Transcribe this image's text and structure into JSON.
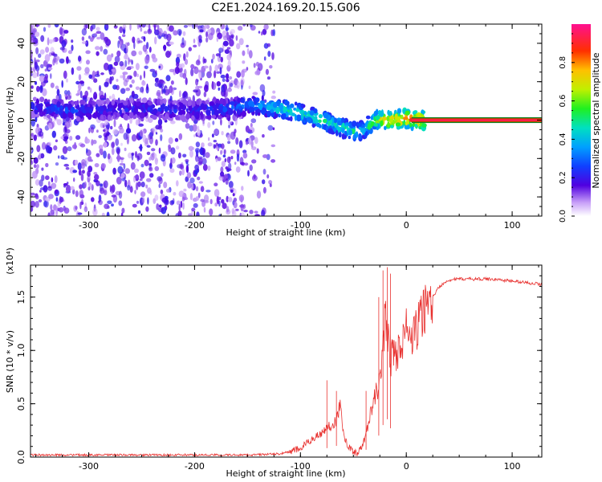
{
  "title": "C2E1.2024.169.20.15.G06",
  "top_panel": {
    "ylabel": "Frequency (Hz)",
    "xlabel": "Height of straight line (km)",
    "colorbar_label": "Normalized spectral amplitude"
  },
  "bottom_panel": {
    "ylabel": "SNR (10 * v/v)",
    "xlabel": "Height of straight line (km)",
    "scale_label": "(x10⁴)"
  },
  "colors": {
    "snr_line": "#e8312f",
    "scatter_low": "#b890f0",
    "scatter_mid": "#7a10e8",
    "scatter_high": "#2a30ff"
  },
  "chart_data": [
    {
      "type": "heatmap",
      "title": "C2E1.2024.169.20.15.G06",
      "xlabel": "Height of straight line (km)",
      "ylabel": "Frequency (Hz)",
      "xlim": [
        -355,
        128
      ],
      "ylim": [
        -50,
        50
      ],
      "x_ticks": [
        -300,
        -200,
        -100,
        0,
        100
      ],
      "x_tick_labels": [
        "-300",
        "-200",
        "-100",
        "0",
        "100"
      ],
      "y_ticks": [
        -40,
        -20,
        0,
        20,
        40
      ],
      "y_tick_labels": [
        "-40",
        "-20",
        "0",
        "20",
        "40"
      ],
      "colorbar": {
        "label": "Normalized spectral amplitude",
        "range": [
          0,
          1
        ],
        "ticks": [
          0.0,
          0.2,
          0.4,
          0.6,
          0.8
        ],
        "tick_labels": [
          "0.0",
          "0.2",
          "0.4",
          "0.6",
          "0.8"
        ]
      },
      "ridge": {
        "x": [
          -355,
          -320,
          -300,
          -250,
          -200,
          -170,
          -150,
          -130,
          -110,
          -95,
          -80,
          -70,
          -60,
          -50,
          -40,
          -30,
          -20,
          -10,
          0,
          10,
          128
        ],
        "y": [
          7,
          5,
          5,
          6,
          5,
          6,
          8,
          7,
          5,
          3,
          0,
          -2,
          -4,
          -6,
          -5,
          0,
          0,
          0,
          1,
          0,
          0
        ],
        "amplitude": [
          0.25,
          0.3,
          0.25,
          0.25,
          0.25,
          0.3,
          0.35,
          0.45,
          0.55,
          0.5,
          0.55,
          0.5,
          0.55,
          0.5,
          0.45,
          0.7,
          0.85,
          0.9,
          0.95,
          0.95,
          0.95
        ]
      },
      "noise_extent_x": [
        -355,
        -125
      ]
    },
    {
      "type": "line",
      "xlabel": "Height of straight line (km)",
      "ylabel": "SNR (10 * v/v)",
      "scale_label": "(x10⁴)",
      "xlim": [
        -355,
        128
      ],
      "ylim": [
        0,
        1.8
      ],
      "x_ticks": [
        -300,
        -200,
        -100,
        0,
        100
      ],
      "x_tick_labels": [
        "-300",
        "-200",
        "-100",
        "0",
        "100"
      ],
      "y_ticks": [
        0.0,
        0.5,
        1.0,
        1.5
      ],
      "y_tick_labels": [
        "0.0",
        "0.5",
        "1.0",
        "1.5"
      ],
      "series": [
        {
          "x": [
            -355,
            -300,
            -250,
            -200,
            -150,
            -120,
            -110,
            -100,
            -95,
            -90,
            -85,
            -80,
            -75,
            -70,
            -66,
            -63,
            -60,
            -58,
            -55,
            -50,
            -45,
            -40,
            -35,
            -30,
            -25,
            -22,
            -20,
            -17,
            -15,
            -12,
            -10,
            -5,
            0,
            5,
            10,
            15,
            20,
            25,
            30,
            35,
            40,
            50,
            60,
            70,
            80,
            90,
            100,
            110,
            128
          ],
          "y": [
            0.02,
            0.02,
            0.02,
            0.02,
            0.02,
            0.03,
            0.05,
            0.08,
            0.12,
            0.16,
            0.2,
            0.22,
            0.28,
            0.3,
            0.35,
            0.5,
            0.28,
            0.18,
            0.1,
            0.05,
            0.04,
            0.15,
            0.35,
            0.55,
            0.7,
            1.0,
            1.35,
            1.1,
            0.9,
            1.0,
            0.95,
            1.05,
            1.2,
            1.1,
            1.2,
            1.35,
            1.45,
            1.5,
            1.58,
            1.63,
            1.66,
            1.67,
            1.67,
            1.67,
            1.67,
            1.66,
            1.65,
            1.64,
            1.62
          ],
          "spikes": [
            {
              "x": -75,
              "y": 0.72
            },
            {
              "x": -66,
              "y": 0.62
            },
            {
              "x": -38,
              "y": 0.62
            },
            {
              "x": -26,
              "y": 1.5
            },
            {
              "x": -22,
              "y": 1.75
            },
            {
              "x": -18,
              "y": 1.78
            },
            {
              "x": -15,
              "y": 1.72
            }
          ]
        }
      ]
    }
  ]
}
